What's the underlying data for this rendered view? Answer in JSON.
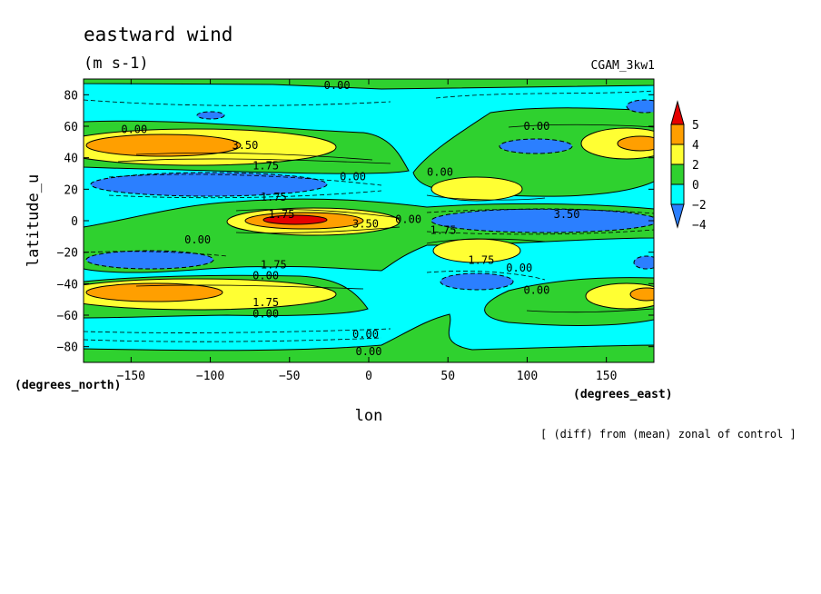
{
  "chart_data": {
    "type": "contour",
    "title": "eastward wind",
    "units": "(m s-1)",
    "model": "CGAM_3kw1",
    "xlabel": "lon",
    "ylabel": "latitude_u",
    "x_units": "(degrees_east)",
    "y_units": "(degrees_north)",
    "note": "[ (diff) from (mean) zonal of control ]",
    "xlim": [
      -180,
      180
    ],
    "ylim": [
      -90,
      90
    ],
    "x_ticks": [
      -150,
      -100,
      -50,
      0,
      50,
      100,
      150
    ],
    "y_ticks": [
      -80,
      -60,
      -40,
      -20,
      0,
      20,
      40,
      60,
      80
    ],
    "colorbar": {
      "labels": [
        "5",
        "4",
        "2",
        "0",
        "−2",
        "−4"
      ],
      "colors": [
        "#e60000",
        "#ff9f00",
        "#ffff33",
        "#2fd12f",
        "#00ffff",
        "#2b7fff"
      ]
    },
    "contour_labels": [
      {
        "text": "0.00",
        "lon": -20,
        "lat": 86
      },
      {
        "text": "0.00",
        "lon": -148,
        "lat": 58
      },
      {
        "text": "3.50",
        "lon": -78,
        "lat": 48
      },
      {
        "text": "1.75",
        "lon": -65,
        "lat": 35
      },
      {
        "text": "0.00",
        "lon": -10,
        "lat": 28
      },
      {
        "text": "1.75",
        "lon": -60,
        "lat": 15
      },
      {
        "text": "1.75",
        "lon": -55,
        "lat": 4
      },
      {
        "text": "3.50",
        "lon": -2,
        "lat": -2
      },
      {
        "text": "0.00",
        "lon": -108,
        "lat": -12
      },
      {
        "text": "1.75",
        "lon": -60,
        "lat": -28
      },
      {
        "text": "0.00",
        "lon": -65,
        "lat": -35
      },
      {
        "text": "1.75",
        "lon": -65,
        "lat": -52
      },
      {
        "text": "0.00",
        "lon": -65,
        "lat": -59
      },
      {
        "text": "0.00",
        "lon": 25,
        "lat": 1
      },
      {
        "text": "1.75",
        "lon": 47,
        "lat": -6
      },
      {
        "text": "3.50",
        "lon": 125,
        "lat": 4
      },
      {
        "text": "1.75",
        "lon": 71,
        "lat": -25
      },
      {
        "text": "0.00",
        "lon": 95,
        "lat": -30
      },
      {
        "text": "0.00",
        "lon": 106,
        "lat": 60
      },
      {
        "text": "0.00",
        "lon": 45,
        "lat": 31
      },
      {
        "text": "0.00",
        "lon": 106,
        "lat": -44
      },
      {
        "text": "0.00",
        "lon": -2,
        "lat": -72
      },
      {
        "text": "0.00",
        "lon": 0,
        "lat": -83
      }
    ]
  }
}
